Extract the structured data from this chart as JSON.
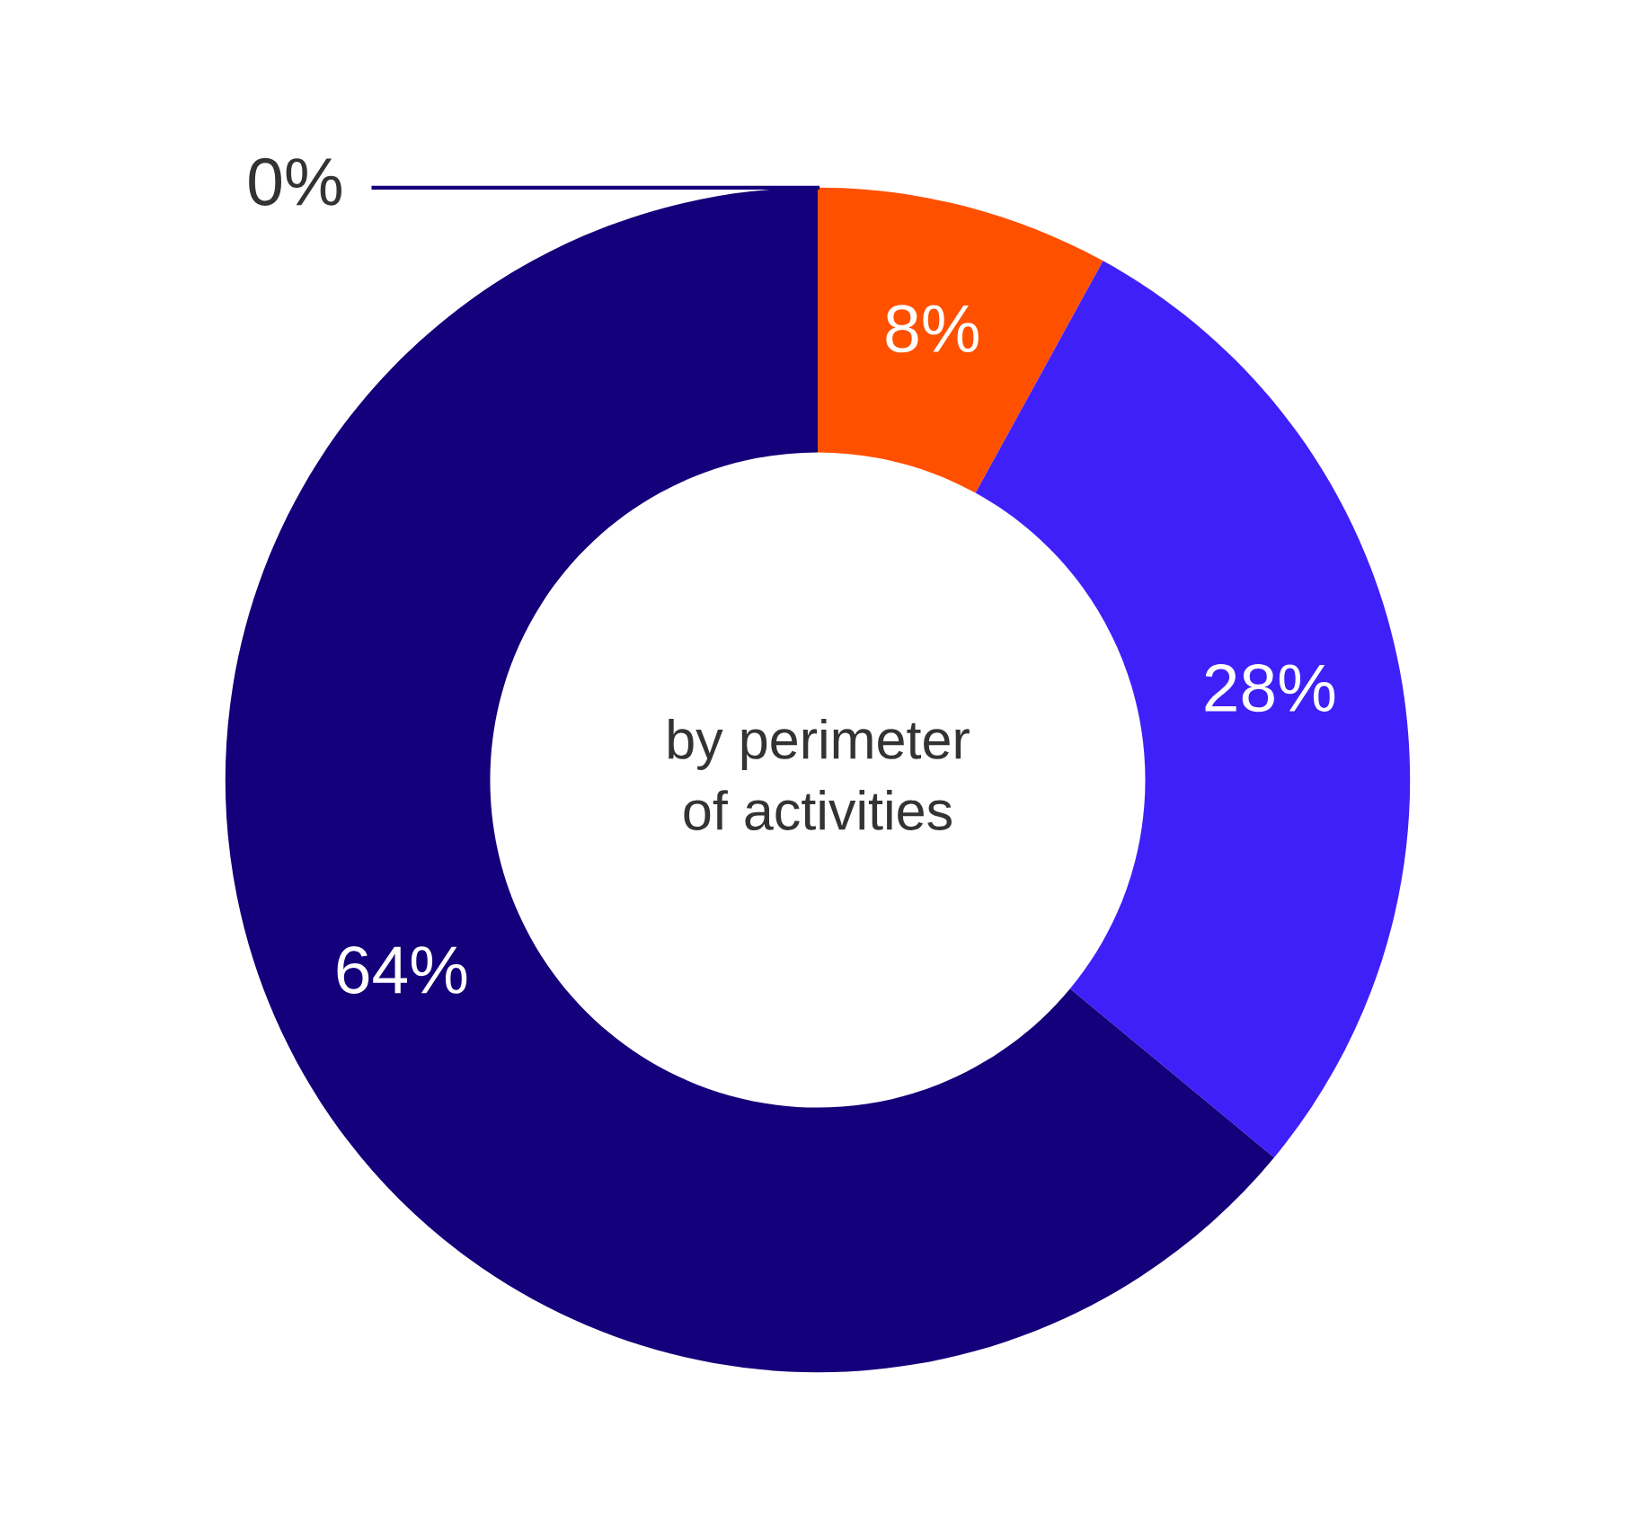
{
  "chart_data": {
    "type": "donut",
    "categories": [
      null,
      null,
      null,
      null
    ],
    "values": [
      8,
      28,
      64,
      0
    ],
    "colors": [
      "#ff5000",
      "#4020f8",
      "#14007a",
      "#14007a"
    ],
    "value_labels": [
      "8%",
      "28%",
      "64%",
      "0%"
    ],
    "annotations": [
      "by perimeter\nof activities"
    ],
    "legend": false
  }
}
